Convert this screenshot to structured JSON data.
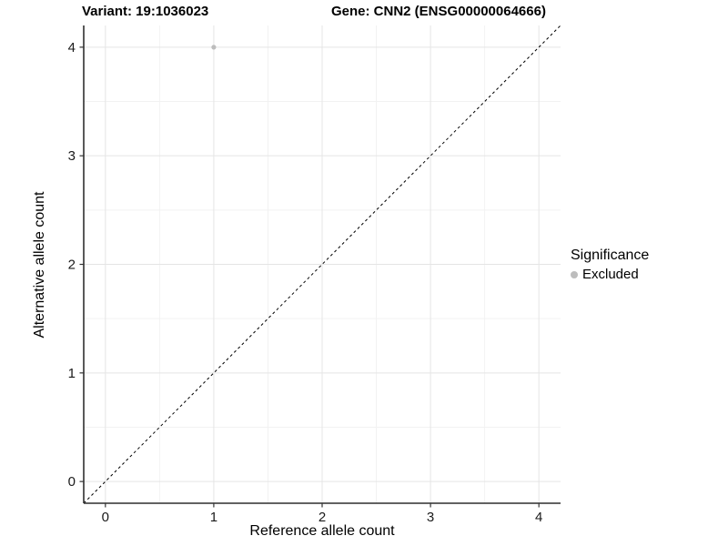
{
  "header": {
    "variant_title": "Variant: 19:1036023",
    "gene_title": "Gene: CNN2 (ENSG00000064666)"
  },
  "chart_data": {
    "type": "scatter",
    "xlabel": "Reference allele count",
    "ylabel": "Alternative allele count",
    "xlim": [
      -0.2,
      4.2
    ],
    "ylim": [
      -0.2,
      4.2
    ],
    "xticks": [
      0,
      1,
      2,
      3,
      4
    ],
    "yticks": [
      0,
      1,
      2,
      3,
      4
    ],
    "minor_gridlines": [
      0.5,
      1.5,
      2.5,
      3.5
    ],
    "grid": "major+minor",
    "reference_line": {
      "slope": 1,
      "intercept": 0,
      "linetype": "dashed",
      "color": "#000000"
    },
    "series": [
      {
        "name": "Excluded",
        "color": "#bdbdbd",
        "points": [
          [
            1,
            4
          ]
        ]
      }
    ],
    "legend": {
      "title": "Significance",
      "position": "right",
      "items": [
        {
          "label": "Excluded",
          "color": "#bdbdbd",
          "marker": "circle"
        }
      ]
    }
  },
  "colors": {
    "background": "#ffffff",
    "grid_major": "#e5e5e5",
    "grid_minor": "#f2f2f2",
    "axis_line": "#2f2f2f",
    "tick_mark": "#333333",
    "tick_label": "#1a1a1a"
  }
}
